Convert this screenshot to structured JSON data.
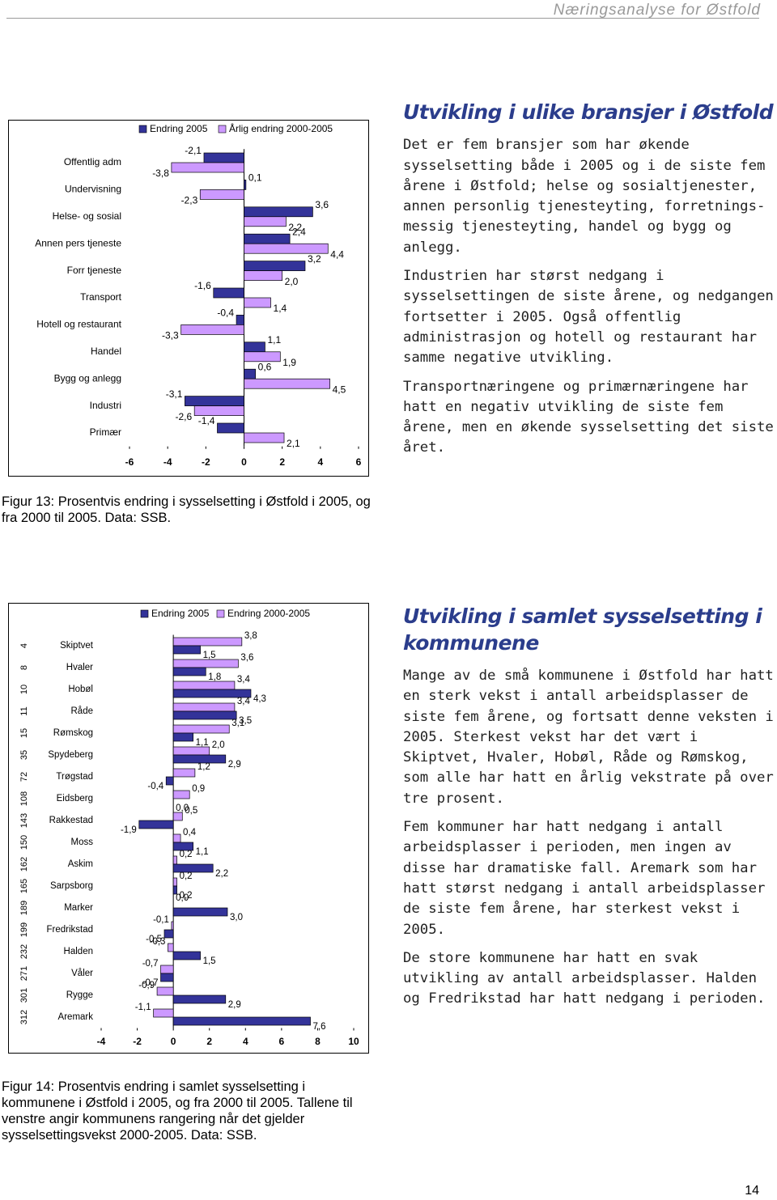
{
  "header": "Næringsanalyse for Østfold",
  "sections": [
    {
      "heading": "Utvikling i ulike bransjer i Østfold",
      "paragraphs": [
        "Det er fem bransjer som har økende sysselsetting både i 2005 og i de siste fem årene i Østfold; helse og sosialtjenester, annen personlig tjenesteyting, forretnings-messig tjenesteyting, handel og bygg og anlegg.",
        "Industrien har størst nedgang i sysselsettingen de siste årene, og nedgangen fortsetter i 2005. Også offentlig administrasjon og hotell og restaurant har samme negative utvikling.",
        "Transportnæringene og primærnæringene har hatt en negativ utvikling de siste fem årene, men en økende sysselsetting det siste året."
      ]
    },
    {
      "heading": "Utvikling i samlet sysselsetting i kommunene",
      "paragraphs": [
        "Mange av de små kommunene i Østfold har hatt en sterk vekst i antall arbeidsplasser de siste fem årene, og fortsatt denne veksten i 2005. Sterkest vekst har det vært i Skiptvet, Hvaler, Hobøl, Råde og Rømskog, som alle har hatt en årlig vekstrate på over tre prosent.",
        "Fem kommuner har hatt nedgang i antall arbeidsplasser i perioden, men ingen av disse har dramatiske fall. Aremark som har hatt størst nedgang i antall arbeidsplasser de siste fem årene, har sterkest vekst i 2005.",
        "De store kommunene har hatt en svak utvikling av antall arbeidsplasser. Halden og Fredrikstad har hatt nedgang i perioden."
      ]
    }
  ],
  "captions": [
    "Figur 13: Prosentvis endring i sysselsetting i Østfold i 2005, og fra 2000 til 2005. Data: SSB.",
    "Figur 14: Prosentvis endring i samlet sysselsetting i kommunene i Østfold i 2005, og fra 2000 til 2005. Tallene til venstre angir kommunens rangering når det gjelder sysselsettingsvekst 2000-2005. Data: SSB."
  ],
  "page_number": 14,
  "chart_data": [
    {
      "type": "hbar",
      "categories": [
        "Offentlig adm",
        "Undervisning",
        "Helse- og sosial",
        "Annen pers tjeneste",
        "Forr tjeneste",
        "Transport",
        "Hotell og restaurant",
        "Handel",
        "Bygg og anlegg",
        "Industri",
        "Primær"
      ],
      "series": [
        {
          "name": "Endring 2005",
          "color": "#333399",
          "values": [
            -2.1,
            0.1,
            3.6,
            2.4,
            3.2,
            -1.6,
            -0.4,
            1.1,
            0.6,
            -3.1,
            -1.4
          ],
          "value_labels": [
            "-2,1",
            "0,1",
            "3,6",
            "2,4",
            "3,2",
            "-1,6",
            "-0,4",
            "1,1",
            "0,6",
            "-3,1",
            "-1,4"
          ]
        },
        {
          "name": "Årlig endring 2000-2005",
          "color": "#cc99ff",
          "values": [
            -3.8,
            -2.3,
            2.2,
            4.4,
            2.0,
            1.4,
            -3.3,
            1.9,
            4.5,
            -2.6,
            2.1
          ],
          "value_labels": [
            "-3,8",
            "-2,3",
            "2,2",
            "4,4",
            "2,0",
            "1,4",
            "-3,3",
            "1,9",
            "4,5",
            "-2,6",
            "2,1"
          ]
        }
      ],
      "xlim": [
        -6,
        6
      ],
      "xticks": [
        -6,
        -4,
        -2,
        0,
        2,
        4,
        6
      ]
    },
    {
      "type": "hbar",
      "categories": [
        "Skiptvet",
        "Hvaler",
        "Hobøl",
        "Råde",
        "Rømskog",
        "Spydeberg",
        "Trøgstad",
        "Eidsberg",
        "Rakkestad",
        "Moss",
        "Askim",
        "Sarpsborg",
        "Marker",
        "Fredrikstad",
        "Halden",
        "Våler",
        "Rygge",
        "Aremark"
      ],
      "ranks": [
        4,
        8,
        10,
        11,
        15,
        35,
        72,
        108,
        143,
        150,
        162,
        165,
        189,
        199,
        232,
        271,
        301,
        312
      ],
      "series": [
        {
          "name": "Endring 2005",
          "color": "#333399",
          "values": [
            1.5,
            1.8,
            4.3,
            3.5,
            1.1,
            2.9,
            -0.4,
            0.0,
            -1.9,
            1.1,
            2.2,
            0.2,
            3.0,
            -0.5,
            1.5,
            -0.7,
            2.9,
            7.6
          ],
          "value_labels": [
            "1,5",
            "1,8",
            "4,3",
            "3,5",
            "1,1",
            "2,9",
            "-0,4",
            "0,0",
            "-1,9",
            "1,1",
            "2,2",
            "0,2",
            "3,0",
            "-0,5",
            "1,5",
            "-0,7",
            "2,9",
            "7,6"
          ]
        },
        {
          "name": "Endring 2000-2005",
          "color": "#cc99ff",
          "values": [
            3.8,
            3.6,
            3.4,
            3.4,
            3.1,
            2.0,
            1.2,
            0.9,
            0.5,
            0.4,
            0.2,
            0.2,
            0.0,
            -0.1,
            -0.3,
            -0.7,
            -0.9,
            -1.1
          ],
          "value_labels": [
            "3,8",
            "3,6",
            "3,4",
            "3,4",
            "3,1",
            "2,0",
            "1,2",
            "0,9",
            "0,5",
            "0,4",
            "0,2",
            "0,2",
            "0,0",
            "-0,1",
            "-0,3",
            "-0,7",
            "-0,9",
            "-1,1"
          ]
        }
      ],
      "xlim": [
        -4,
        10
      ],
      "xticks": [
        -4,
        -2,
        0,
        2,
        4,
        6,
        8,
        10
      ]
    }
  ]
}
